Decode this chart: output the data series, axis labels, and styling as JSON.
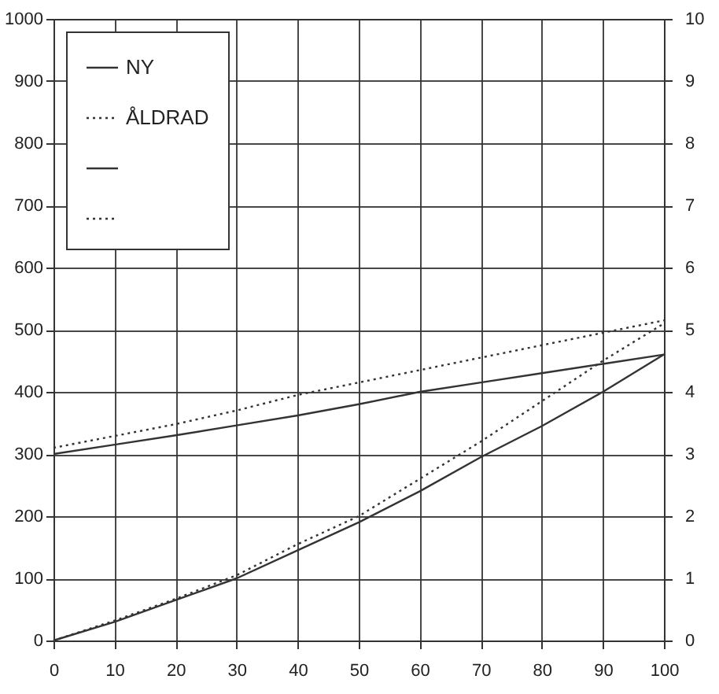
{
  "chart_data": {
    "type": "line",
    "x": [
      0,
      10,
      20,
      30,
      40,
      50,
      60,
      70,
      80,
      90,
      100
    ],
    "series": [
      {
        "name": "NY",
        "color": "#333333",
        "line_style": "solid",
        "values": [
          300,
          315,
          330,
          346,
          362,
          380,
          400,
          415,
          430,
          445,
          460
        ]
      },
      {
        "name": "ÅLDRAD",
        "color": "#333333",
        "line_style": "dotted",
        "values": [
          310,
          329,
          348,
          370,
          395,
          415,
          435,
          455,
          475,
          495,
          515
        ]
      },
      {
        "color": "#333333",
        "line_style": "solid",
        "axis": "y2",
        "values": [
          0,
          0.3,
          0.65,
          1.0,
          1.45,
          1.9,
          2.4,
          2.95,
          3.45,
          4.0,
          4.6
        ]
      },
      {
        "color": "#333333",
        "line_style": "dotted",
        "axis": "y2",
        "values": [
          0,
          0.32,
          0.67,
          1.05,
          1.55,
          2.0,
          2.6,
          3.2,
          3.85,
          4.5,
          5.1
        ]
      }
    ],
    "xlim": [
      0,
      100
    ],
    "xticks": [
      0,
      10,
      20,
      30,
      40,
      50,
      60,
      70,
      80,
      90,
      100
    ],
    "ylim": [
      0,
      1000
    ],
    "yticks": [
      0,
      100,
      200,
      300,
      400,
      500,
      600,
      700,
      800,
      900,
      1000
    ],
    "y2lim": [
      0,
      10
    ],
    "y2ticks": [
      0,
      1,
      2,
      3,
      4,
      5,
      6,
      7,
      8,
      9,
      10
    ],
    "grid": true,
    "legend": "top left",
    "marker": "none"
  }
}
